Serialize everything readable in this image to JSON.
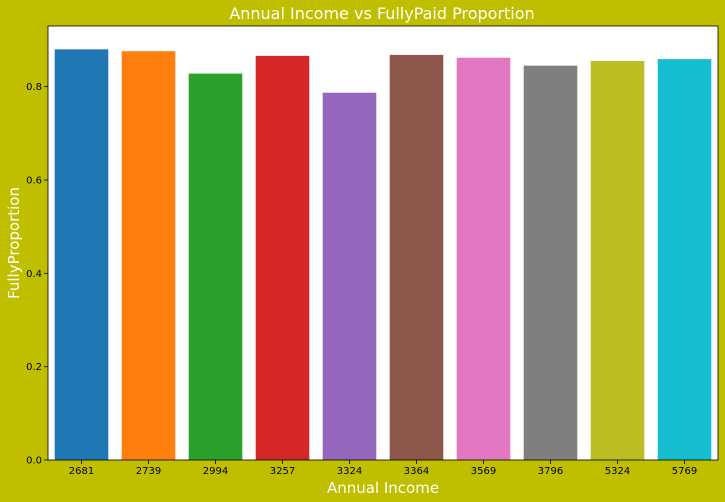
{
  "colors": {
    "background": "#bfbf00",
    "plot_area": "#ffffff",
    "axis_line": "#000000",
    "bars": [
      "#1f77b4",
      "#ff7f0e",
      "#2ca02c",
      "#d62728",
      "#9467bd",
      "#8c564b",
      "#e377c2",
      "#7f7f7f",
      "#bcbd22",
      "#17becf"
    ]
  },
  "chart_data": {
    "type": "bar",
    "title": "Annual Income vs FullyPaid Proportion",
    "xlabel": "Annual Income",
    "ylabel": "FullyProportion",
    "categories": [
      "2681",
      "2739",
      "2994",
      "3257",
      "3324",
      "3364",
      "3569",
      "3796",
      "5324",
      "5769"
    ],
    "values": [
      0.88,
      0.876,
      0.828,
      0.866,
      0.787,
      0.868,
      0.862,
      0.845,
      0.855,
      0.859
    ],
    "ylim": [
      0,
      0.93
    ],
    "yticks": [
      0.0,
      0.2,
      0.4,
      0.6,
      0.8
    ],
    "ytick_labels": [
      "0.0",
      "0.2",
      "0.4",
      "0.6",
      "0.8"
    ],
    "grid": false,
    "legend": "none"
  }
}
